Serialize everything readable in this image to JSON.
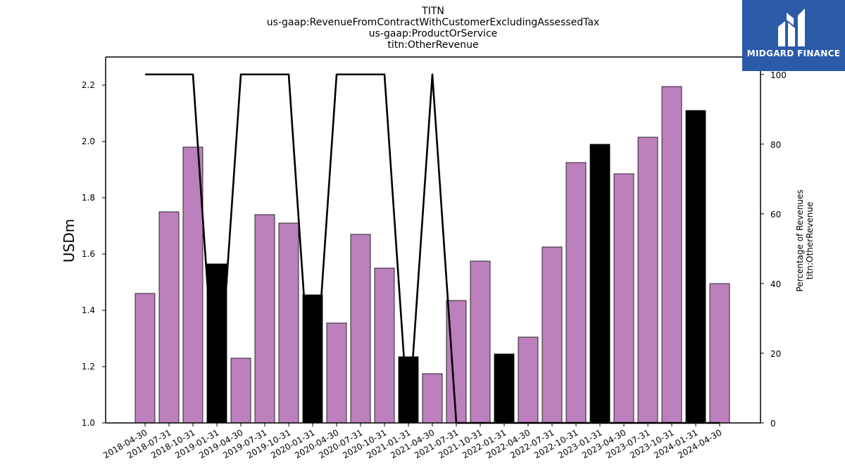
{
  "chart_data": {
    "type": "bar",
    "title_lines": [
      "TITN",
      "us-gaap:RevenueFromContractWithCustomerExcludingAssessedTax",
      "us-gaap:ProductOrService",
      "titn:OtherRevenue"
    ],
    "ylabel": "USDm",
    "y2label_lines": [
      "Percentage of Revenues",
      "titn:OtherRevenue"
    ],
    "ylim": [
      1.0,
      2.3
    ],
    "y2lim": [
      0,
      105
    ],
    "yticks": [
      "1.0",
      "1.2",
      "1.4",
      "1.6",
      "1.8",
      "2.0",
      "2.2"
    ],
    "y2ticks": [
      "0",
      "20",
      "40",
      "60",
      "80",
      "100"
    ],
    "colors": {
      "regular": "#bc80bd",
      "q4": "#000000",
      "line": "#000000"
    },
    "categories": [
      "2018-04-30",
      "2018-07-31",
      "2018-10-31",
      "2019-01-31",
      "2019-04-30",
      "2019-07-31",
      "2019-10-31",
      "2020-01-31",
      "2020-04-30",
      "2020-07-31",
      "2020-10-31",
      "2021-01-31",
      "2021-04-30",
      "2021-07-31",
      "2021-10-31",
      "2022-01-31",
      "2022-04-30",
      "2022-07-31",
      "2022-10-31",
      "2023-01-31",
      "2023-04-30",
      "2023-07-31",
      "2023-10-31",
      "2024-01-31",
      "2024-04-30"
    ],
    "series": [
      {
        "kind": "bar",
        "values": [
          1.46,
          1.75,
          1.98,
          1.565,
          1.23,
          1.74,
          1.71,
          1.455,
          1.355,
          1.67,
          1.55,
          1.235,
          1.175,
          1.435,
          1.575,
          1.245,
          1.305,
          1.625,
          1.925,
          1.99,
          1.885,
          2.015,
          2.195,
          2.11,
          1.495
        ],
        "highlight": [
          false,
          false,
          false,
          true,
          false,
          false,
          false,
          true,
          false,
          false,
          false,
          true,
          false,
          false,
          false,
          true,
          false,
          false,
          false,
          true,
          false,
          false,
          false,
          true,
          false
        ]
      },
      {
        "kind": "line",
        "axis": "right",
        "values": [
          100,
          100,
          100,
          0,
          100,
          100,
          100,
          0,
          100,
          100,
          100,
          0,
          100,
          0,
          0,
          0,
          0,
          0,
          0,
          0,
          0,
          0,
          0,
          0,
          0
        ]
      }
    ]
  },
  "logo": {
    "text": "MIDGARD FINANCE"
  }
}
